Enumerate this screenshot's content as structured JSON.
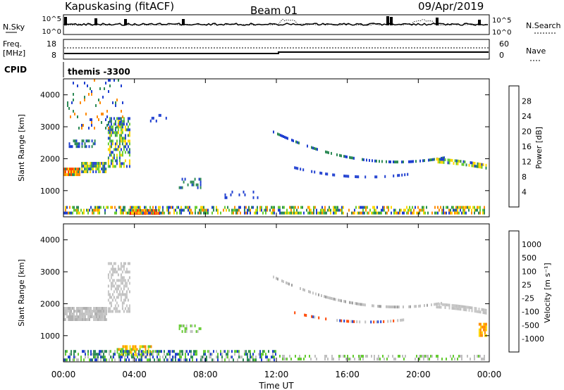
{
  "header": {
    "station": "Kapuskasing (fitACF)",
    "beam": "Beam 01",
    "date": "09/Apr/2019"
  },
  "aux_panels": {
    "nsky_label": "N.Sky",
    "nsearch_label": "N.Search",
    "freq_label_1": "Freq.",
    "freq_label_2": "[MHz]",
    "nave_label": "Nave",
    "cpid_label": "CPID",
    "cpid_value": "themis -3300",
    "nsky_ticks": [
      "10^5",
      "10^0"
    ],
    "nsearch_ticks": [
      "10^5",
      "10^0"
    ],
    "freq_ticks": [
      "18",
      "8"
    ],
    "nave_ticks": [
      "60",
      "0"
    ]
  },
  "colors": {
    "scatter_blue": "#1f3fd0",
    "scatter_green": "#2e8b57",
    "scatter_orange": "#ff8c00",
    "scatter_red": "#ff1010",
    "scatter_gray": "#c0c0c0"
  },
  "chart_data": [
    {
      "type": "heatmap",
      "name": "power",
      "ylabel": "Slant Range [km]",
      "xlabel": "Time UT",
      "xlim": [
        "00:00",
        "00:00"
      ],
      "ylim": [
        180,
        4500
      ],
      "x_ticks": [
        "00:00",
        "04:00",
        "08:00",
        "12:00",
        "16:00",
        "20:00",
        "00:00"
      ],
      "y_ticks": [
        1000,
        2000,
        3000,
        4000
      ],
      "colorbar": {
        "label": "Power [dB]",
        "ticks": [
          "4",
          "8",
          "12",
          "16",
          "20",
          "24",
          "28"
        ],
        "colors": [
          "#0000ff",
          "#1f3fd0",
          "#2e8b57",
          "#66cc33",
          "#ffd700",
          "#ff8c00",
          "#ff4500",
          "#ff0000"
        ]
      },
      "bands": [
        {
          "t0": 0.0,
          "t1": 1.0,
          "r0": 1380,
          "r1": 1720,
          "colors": [
            "#ff8c00",
            "#ffd700",
            "#2e8b57",
            "#ff4500"
          ],
          "density": 0.95
        },
        {
          "t0": 1.0,
          "t1": 2.5,
          "r0": 1480,
          "r1": 1900,
          "colors": [
            "#66cc33",
            "#ffd700",
            "#2e8b57",
            "#1f3fd0"
          ],
          "density": 0.8
        },
        {
          "t0": 2.5,
          "t1": 3.8,
          "r0": 1700,
          "r1": 3300,
          "colors": [
            "#2e8b57",
            "#66cc33",
            "#1f3fd0",
            "#ffd700"
          ],
          "density": 0.55
        },
        {
          "t0": 0.3,
          "t1": 2.0,
          "r0": 2300,
          "r1": 2600,
          "colors": [
            "#1f3fd0",
            "#2e8b57"
          ],
          "density": 0.35
        },
        {
          "t0": 0.2,
          "t1": 3.5,
          "r0": 2900,
          "r1": 4500,
          "colors": [
            "#1f3fd0",
            "#2e8b57",
            "#ff8c00"
          ],
          "density": 0.08
        },
        {
          "t0": 3.7,
          "t1": 5.5,
          "r0": 180,
          "r1": 420,
          "colors": [
            "#ff0000",
            "#ff4500",
            "#ff8c00"
          ],
          "density": 0.9
        },
        {
          "t0": 0.0,
          "t1": 23.9,
          "r0": 180,
          "r1": 520,
          "colors": [
            "#1f3fd0",
            "#2e8b57",
            "#66cc33",
            "#ffd700",
            "#ff8c00"
          ],
          "density": 0.55
        },
        {
          "t0": 4.8,
          "t1": 6.2,
          "r0": 3100,
          "r1": 3400,
          "colors": [
            "#1f3fd0"
          ],
          "density": 0.25
        },
        {
          "t0": 6.5,
          "t1": 7.8,
          "r0": 1000,
          "r1": 1400,
          "colors": [
            "#1f3fd0",
            "#2e8b57"
          ],
          "density": 0.35
        },
        {
          "t0": 9.0,
          "t1": 11.5,
          "r0": 700,
          "r1": 1000,
          "colors": [
            "#1f3fd0"
          ],
          "density": 0.12
        }
      ],
      "arcs": [
        {
          "t0": 11.8,
          "t1": 21.5,
          "rs": 2800,
          "rm": 1500,
          "re": 2000,
          "width": 160,
          "colors": [
            "#1f3fd0",
            "#2e8b57"
          ],
          "density": 0.55
        },
        {
          "t0": 13.0,
          "t1": 19.5,
          "rs": 1700,
          "rm": 1250,
          "re": 1500,
          "width": 120,
          "colors": [
            "#1f3fd0"
          ],
          "density": 0.4
        },
        {
          "t0": 21.0,
          "t1": 23.9,
          "rs": 1900,
          "rm": 1850,
          "re": 1700,
          "width": 260,
          "colors": [
            "#2e8b57",
            "#66cc33",
            "#ffd700",
            "#1f3fd0"
          ],
          "density": 0.75
        }
      ]
    },
    {
      "type": "heatmap",
      "name": "velocity",
      "ylabel": "Slant Range [km]",
      "xlabel": "Time UT",
      "xlim": [
        "00:00",
        "00:00"
      ],
      "ylim": [
        180,
        4500
      ],
      "x_ticks": [
        "00:00",
        "04:00",
        "08:00",
        "12:00",
        "16:00",
        "20:00",
        "00:00"
      ],
      "y_ticks": [
        1000,
        2000,
        3000,
        4000
      ],
      "colorbar": {
        "label": "Velocity [m s⁻¹]",
        "ticks": [
          "1000",
          "500",
          "100",
          "25",
          "-25",
          "-100",
          "-500",
          "-1000"
        ],
        "colors": [
          "#1f3fd0",
          "#1f6b3f",
          "#2e8b57",
          "#66cc33",
          "#c8c8c8",
          "#ffd700",
          "#ff8c00",
          "#ff4500",
          "#ff0000"
        ]
      },
      "bands": [
        {
          "t0": 0.0,
          "t1": 2.5,
          "r0": 1380,
          "r1": 1900,
          "colors": [
            "#c0c0c0",
            "#c8c8c8",
            "#b0b0b0"
          ],
          "density": 0.9
        },
        {
          "t0": 2.5,
          "t1": 3.8,
          "r0": 1700,
          "r1": 3300,
          "colors": [
            "#c0c0c0",
            "#c8c8c8"
          ],
          "density": 0.5
        },
        {
          "t0": 3.0,
          "t1": 5.0,
          "r0": 300,
          "r1": 700,
          "colors": [
            "#ff8c00",
            "#ffd700",
            "#66cc33"
          ],
          "density": 0.6
        },
        {
          "t0": 0.0,
          "t1": 12.0,
          "r0": 180,
          "r1": 550,
          "colors": [
            "#66cc33",
            "#2e8b57",
            "#c0c0c0",
            "#1f3fd0"
          ],
          "density": 0.5
        },
        {
          "t0": 12.0,
          "t1": 23.9,
          "r0": 180,
          "r1": 400,
          "colors": [
            "#c0c0c0",
            "#66cc33"
          ],
          "density": 0.35
        },
        {
          "t0": 6.5,
          "t1": 7.8,
          "r0": 1050,
          "r1": 1350,
          "colors": [
            "#c0c0c0",
            "#66cc33"
          ],
          "density": 0.4
        },
        {
          "t0": 23.4,
          "t1": 23.9,
          "r0": 900,
          "r1": 1400,
          "colors": [
            "#ff8c00",
            "#ffd700"
          ],
          "density": 0.7
        }
      ],
      "arcs": [
        {
          "t0": 11.8,
          "t1": 21.5,
          "rs": 2800,
          "rm": 1500,
          "re": 2000,
          "width": 160,
          "colors": [
            "#c0c0c0",
            "#c8c8c8",
            "#a0a0a0"
          ],
          "density": 0.55
        },
        {
          "t0": 13.0,
          "t1": 19.5,
          "rs": 1700,
          "rm": 1250,
          "re": 1500,
          "width": 120,
          "colors": [
            "#c0c0c0",
            "#ff4500",
            "#1f3fd0"
          ],
          "density": 0.4
        },
        {
          "t0": 21.0,
          "t1": 23.9,
          "rs": 1900,
          "rm": 1850,
          "re": 1700,
          "width": 260,
          "colors": [
            "#c0c0c0",
            "#c8c8c8"
          ],
          "density": 0.75
        }
      ]
    }
  ]
}
